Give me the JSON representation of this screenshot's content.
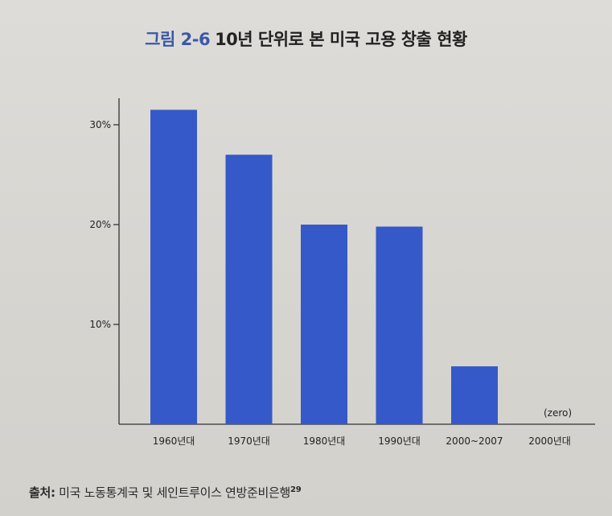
{
  "title": {
    "label": "그림 2-6",
    "text": "10년 단위로 본 미국 고용 창출 현황"
  },
  "source": {
    "label": "출처:",
    "text": " 미국 노동통계국 및 세인트루이스 연방준비은행",
    "footnote": "29"
  },
  "colors": {
    "bar": "#3559c8",
    "title_accent": "#3a58a8",
    "axis": "#333333"
  },
  "chart_data": {
    "type": "bar",
    "title": "10년 단위로 본 미국 고용 창출 현황",
    "xlabel": "",
    "ylabel": "",
    "categories": [
      "1960년대",
      "1970년대",
      "1980년대",
      "1990년대",
      "2000~2007",
      "2000년대"
    ],
    "values": [
      31.5,
      27,
      20,
      19.8,
      5.8,
      0
    ],
    "value_labels": [
      "",
      "",
      "",
      "",
      "",
      "(zero)"
    ],
    "yticks": [
      10,
      20,
      30
    ],
    "ytick_labels": [
      "10%",
      "20%",
      "30%"
    ],
    "ylim": [
      0,
      33
    ],
    "grid": false,
    "legend": "none"
  }
}
